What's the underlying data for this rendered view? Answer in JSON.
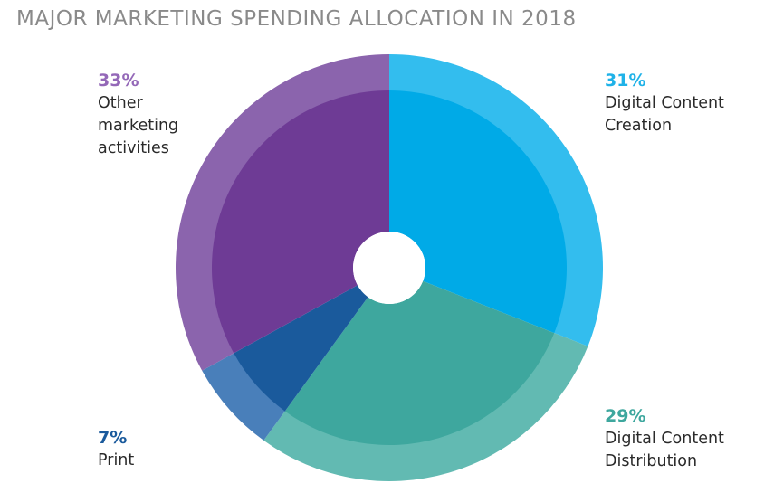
{
  "title": "MAJOR MARKETING SPENDING ALLOCATION IN 2018",
  "chart_data": {
    "type": "pie",
    "title": "MAJOR MARKETING SPENDING ALLOCATION IN 2018",
    "slices": [
      {
        "label": "Digital Content Creation",
        "value": 31,
        "pct_label": "31%",
        "display": "Digital Content\nCreation",
        "color": "#00aae7",
        "outer_color": "#33bdee",
        "text_color": "#1fb2e8"
      },
      {
        "label": "Digital Content Distribution",
        "value": 29,
        "pct_label": "29%",
        "display": "Digital Content\nDistribution",
        "color": "#3ea79e",
        "outer_color": "#62bab2",
        "text_color": "#3ea79e"
      },
      {
        "label": "Print",
        "value": 7,
        "pct_label": "7%",
        "display": "Print",
        "color": "#1a5a9c",
        "outer_color": "#497fba",
        "text_color": "#1a5a9c"
      },
      {
        "label": "Other marketing activities",
        "value": 33,
        "pct_label": "33%",
        "display": "Other\nmarketing\nactivities",
        "color": "#6e3b95",
        "outer_color": "#8b64ad",
        "text_color": "#9468b8"
      }
    ]
  }
}
